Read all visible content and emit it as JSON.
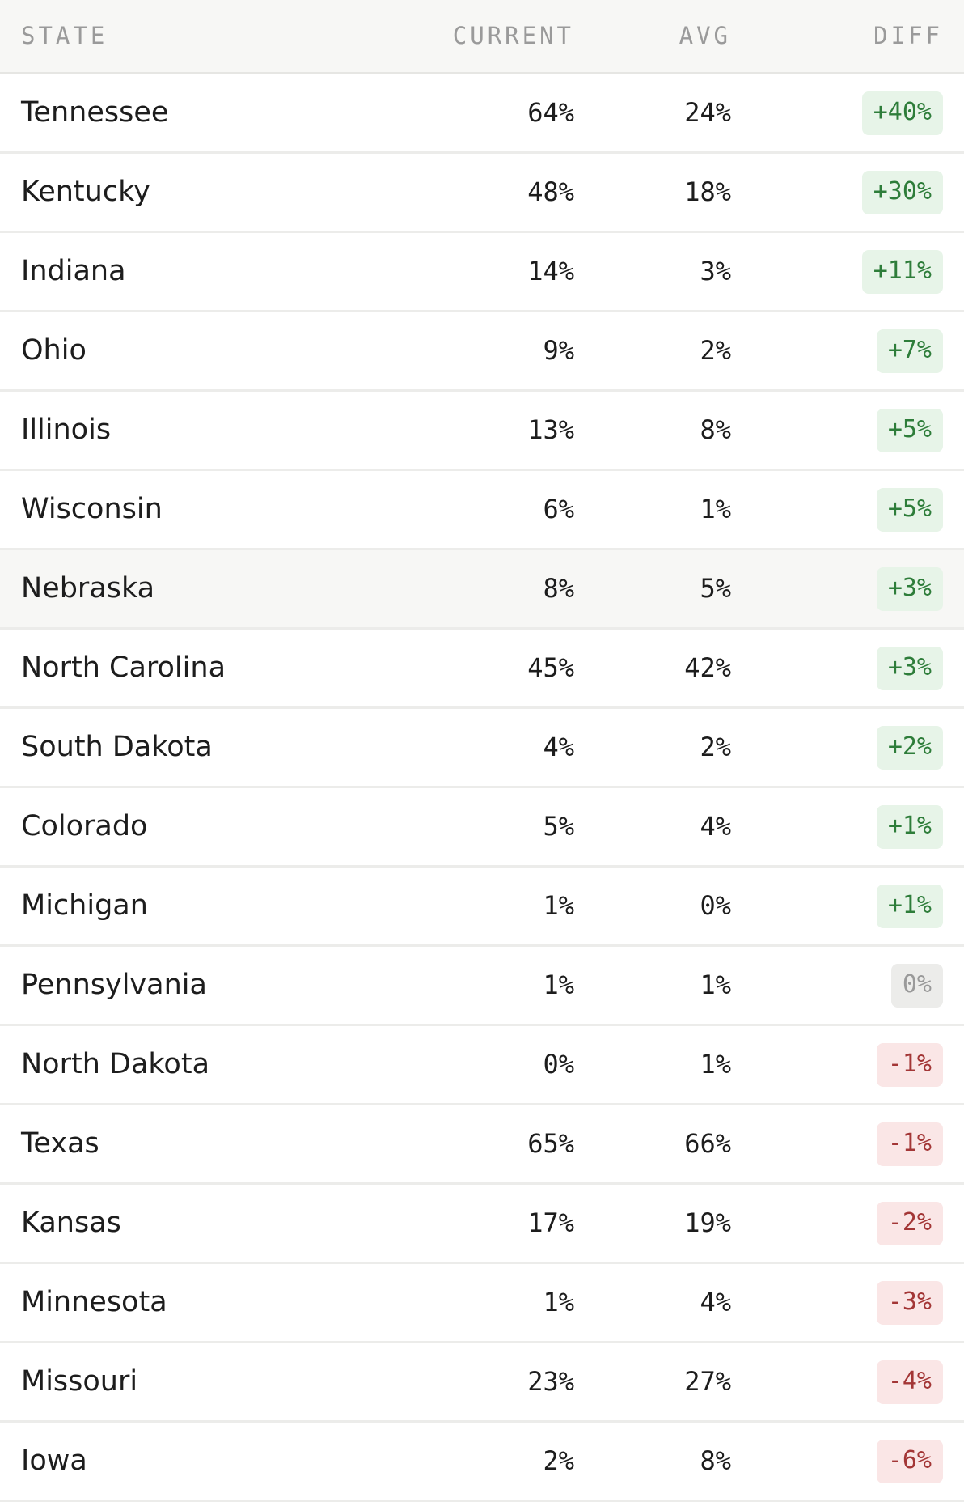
{
  "header": {
    "state": "STATE",
    "current": "CURRENT",
    "avg": "AVG",
    "diff": "DIFF"
  },
  "colors": {
    "positive_bg": "#e7f4e8",
    "positive_text": "#2e7d3a",
    "neutral_bg": "#ececea",
    "neutral_text": "#9a9a9a",
    "negative_bg": "#fae6e6",
    "negative_text": "#a33636",
    "highlight_row_bg": "#f7f7f5"
  },
  "rows": [
    {
      "state": "Tennessee",
      "current": "64%",
      "avg": "24%",
      "diff": "+40%",
      "trend": "pos"
    },
    {
      "state": "Kentucky",
      "current": "48%",
      "avg": "18%",
      "diff": "+30%",
      "trend": "pos"
    },
    {
      "state": "Indiana",
      "current": "14%",
      "avg": "3%",
      "diff": "+11%",
      "trend": "pos"
    },
    {
      "state": "Ohio",
      "current": "9%",
      "avg": "2%",
      "diff": "+7%",
      "trend": "pos"
    },
    {
      "state": "Illinois",
      "current": "13%",
      "avg": "8%",
      "diff": "+5%",
      "trend": "pos"
    },
    {
      "state": "Wisconsin",
      "current": "6%",
      "avg": "1%",
      "diff": "+5%",
      "trend": "pos"
    },
    {
      "state": "Nebraska",
      "current": "8%",
      "avg": "5%",
      "diff": "+3%",
      "trend": "pos",
      "highlighted": true
    },
    {
      "state": "North Carolina",
      "current": "45%",
      "avg": "42%",
      "diff": "+3%",
      "trend": "pos"
    },
    {
      "state": "South Dakota",
      "current": "4%",
      "avg": "2%",
      "diff": "+2%",
      "trend": "pos"
    },
    {
      "state": "Colorado",
      "current": "5%",
      "avg": "4%",
      "diff": "+1%",
      "trend": "pos"
    },
    {
      "state": "Michigan",
      "current": "1%",
      "avg": "0%",
      "diff": "+1%",
      "trend": "pos"
    },
    {
      "state": "Pennsylvania",
      "current": "1%",
      "avg": "1%",
      "diff": "0%",
      "trend": "neu"
    },
    {
      "state": "North Dakota",
      "current": "0%",
      "avg": "1%",
      "diff": "-1%",
      "trend": "neg"
    },
    {
      "state": "Texas",
      "current": "65%",
      "avg": "66%",
      "diff": "-1%",
      "trend": "neg"
    },
    {
      "state": "Kansas",
      "current": "17%",
      "avg": "19%",
      "diff": "-2%",
      "trend": "neg"
    },
    {
      "state": "Minnesota",
      "current": "1%",
      "avg": "4%",
      "diff": "-3%",
      "trend": "neg"
    },
    {
      "state": "Missouri",
      "current": "23%",
      "avg": "27%",
      "diff": "-4%",
      "trend": "neg"
    },
    {
      "state": "Iowa",
      "current": "2%",
      "avg": "8%",
      "diff": "-6%",
      "trend": "neg"
    }
  ]
}
